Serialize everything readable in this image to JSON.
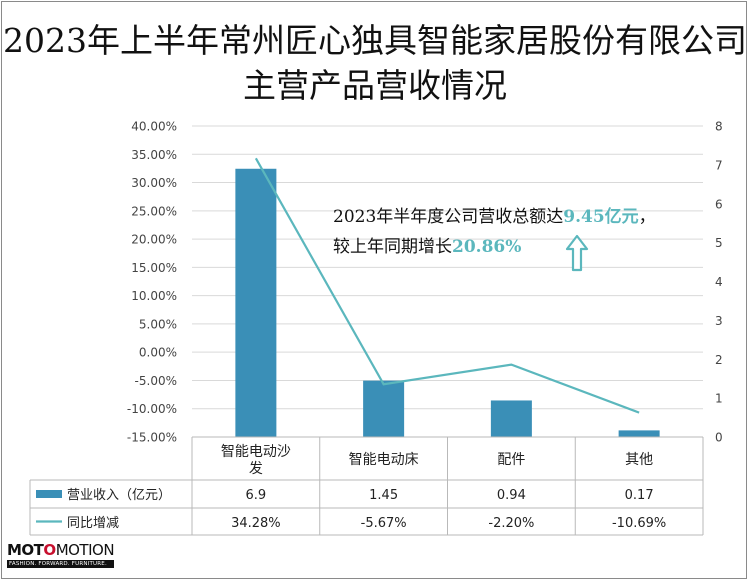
{
  "title": "2023年上半年常州匠心独具智能家居股份有限公司主营产品营收情况",
  "annotation": {
    "line1_prefix": "2023年半年度公司营收总额达",
    "line1_value": "9.45亿元",
    "line1_suffix": "，",
    "line2_prefix": "较上年同期增长",
    "line2_value": "20.86%"
  },
  "logo": {
    "brand": "MOTOMOTION",
    "tagline": "FASHION. FORWARD. FURNITURE."
  },
  "colors": {
    "bar": "#3a8fb7",
    "line": "#5bb7bd",
    "highlight": "#5bb7bd",
    "grid": "#d9d9d9"
  },
  "chart_data": {
    "type": "bar",
    "categories": [
      "智能电动沙发",
      "智能电动床",
      "配件",
      "其他"
    ],
    "series": [
      {
        "name": "营业收入（亿元）",
        "type": "bar",
        "axis": "right",
        "values": [
          6.9,
          1.45,
          0.94,
          0.17
        ],
        "labels": [
          "6.9",
          "1.45",
          "0.94",
          "0.17"
        ]
      },
      {
        "name": "同比增减",
        "type": "line",
        "axis": "left",
        "values": [
          34.28,
          -5.67,
          -2.2,
          -10.69
        ],
        "labels": [
          "34.28%",
          "-5.67%",
          "-2.20%",
          "-10.69%"
        ]
      }
    ],
    "y_left": {
      "ylim": [
        -15,
        40
      ],
      "ticks": [
        "40.00%",
        "35.00%",
        "30.00%",
        "25.00%",
        "20.00%",
        "15.00%",
        "10.00%",
        "5.00%",
        "0.00%",
        "-5.00%",
        "-10.00%",
        "-15.00%"
      ]
    },
    "y_right": {
      "ylim": [
        0,
        8
      ],
      "ticks": [
        "8",
        "7",
        "6",
        "5",
        "4",
        "3",
        "2",
        "1",
        "0"
      ]
    },
    "grid": true,
    "legend": "bottom data table"
  }
}
